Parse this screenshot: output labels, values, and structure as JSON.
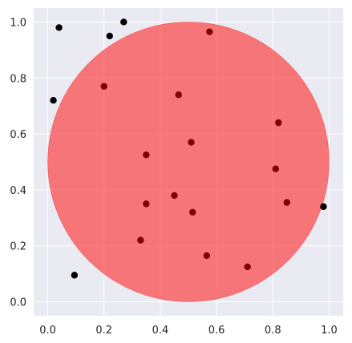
{
  "chart_data": {
    "type": "scatter",
    "title": "",
    "xlabel": "",
    "ylabel": "",
    "xlim": [
      -0.05,
      1.05
    ],
    "ylim": [
      -0.05,
      1.05
    ],
    "grid": true,
    "xticks": [
      "0.0",
      "0.2",
      "0.4",
      "0.6",
      "0.8",
      "1.0"
    ],
    "yticks": [
      "0.0",
      "0.2",
      "0.4",
      "0.6",
      "0.8",
      "1.0"
    ],
    "circle": {
      "cx": 0.5,
      "cy": 0.5,
      "r": 0.5,
      "color": "#ff0000",
      "alpha": 0.5
    },
    "background_color": "#eaeaf2",
    "point_color": "#000000",
    "points": [
      {
        "x": 0.04,
        "y": 0.98
      },
      {
        "x": 0.27,
        "y": 1.0
      },
      {
        "x": 0.22,
        "y": 0.95
      },
      {
        "x": 0.575,
        "y": 0.965
      },
      {
        "x": 0.02,
        "y": 0.72
      },
      {
        "x": 0.2,
        "y": 0.77
      },
      {
        "x": 0.465,
        "y": 0.74
      },
      {
        "x": 0.82,
        "y": 0.64
      },
      {
        "x": 0.51,
        "y": 0.57
      },
      {
        "x": 0.35,
        "y": 0.525
      },
      {
        "x": 0.81,
        "y": 0.475
      },
      {
        "x": 0.45,
        "y": 0.38
      },
      {
        "x": 0.35,
        "y": 0.35
      },
      {
        "x": 0.85,
        "y": 0.355
      },
      {
        "x": 0.515,
        "y": 0.32
      },
      {
        "x": 0.98,
        "y": 0.34
      },
      {
        "x": 0.33,
        "y": 0.22
      },
      {
        "x": 0.565,
        "y": 0.165
      },
      {
        "x": 0.71,
        "y": 0.125
      },
      {
        "x": 0.095,
        "y": 0.095
      }
    ]
  }
}
